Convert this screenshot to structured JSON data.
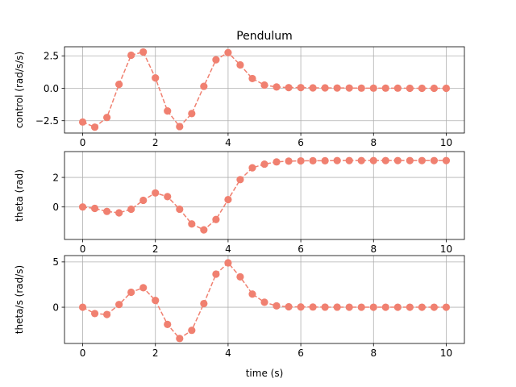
{
  "chart_data": {
    "type": "line",
    "title": "Pendulum",
    "xlabel": "time (s)",
    "color": "#f08070",
    "x": [
      0,
      0.333,
      0.667,
      1.0,
      1.333,
      1.667,
      2.0,
      2.333,
      2.667,
      3.0,
      3.333,
      3.667,
      4.0,
      4.333,
      4.667,
      5.0,
      5.333,
      5.667,
      6.0,
      6.333,
      6.667,
      7.0,
      7.333,
      7.667,
      8.0,
      8.333,
      8.667,
      9.0,
      9.333,
      9.667,
      10.0
    ],
    "xlim": [
      -0.5,
      10.5
    ],
    "xticks": [
      0,
      2,
      4,
      6,
      8,
      10
    ],
    "xtick_labels": [
      "0",
      "2",
      "4",
      "6",
      "8",
      "10"
    ],
    "grid": true,
    "subplots": [
      {
        "ylabel": "control (rad/s/s)",
        "ylim": [
          -3.45,
          3.2
        ],
        "yticks": [
          -2.5,
          0,
          2.5
        ],
        "ytick_labels": [
          "−2.5",
          "0.0",
          "2.5"
        ],
        "values": [
          -2.6,
          -3.0,
          -2.25,
          0.3,
          2.55,
          2.8,
          0.8,
          -1.75,
          -2.95,
          -1.95,
          0.15,
          2.2,
          2.75,
          1.8,
          0.75,
          0.25,
          0.1,
          0.05,
          0.05,
          0.03,
          0.03,
          0.02,
          0.02,
          0.01,
          0.01,
          0.01,
          0.01,
          0.0,
          0.0,
          0.0,
          0.0
        ]
      },
      {
        "ylabel": "theta (rad)",
        "ylim": [
          -2.2,
          3.75
        ],
        "yticks": [
          0,
          2
        ],
        "ytick_labels": [
          "0",
          "2"
        ],
        "values": [
          0.0,
          -0.1,
          -0.3,
          -0.4,
          -0.15,
          0.45,
          0.95,
          0.7,
          -0.15,
          -1.15,
          -1.55,
          -0.85,
          0.5,
          1.85,
          2.65,
          2.9,
          3.05,
          3.1,
          3.12,
          3.13,
          3.13,
          3.14,
          3.14,
          3.14,
          3.14,
          3.14,
          3.14,
          3.14,
          3.14,
          3.14,
          3.14
        ]
      },
      {
        "ylabel": "theta/s (rad/s)",
        "ylim": [
          -4.0,
          5.7
        ],
        "yticks": [
          0,
          5
        ],
        "ytick_labels": [
          "0",
          "5"
        ],
        "values": [
          0.0,
          -0.7,
          -0.8,
          0.3,
          1.65,
          2.15,
          0.75,
          -1.9,
          -3.45,
          -2.55,
          0.4,
          3.65,
          4.9,
          3.35,
          1.45,
          0.55,
          0.15,
          0.05,
          0.03,
          0.02,
          0.01,
          0.01,
          0.0,
          0.0,
          0.0,
          0.0,
          0.0,
          0.0,
          0.0,
          0.0,
          0.0
        ]
      }
    ]
  }
}
